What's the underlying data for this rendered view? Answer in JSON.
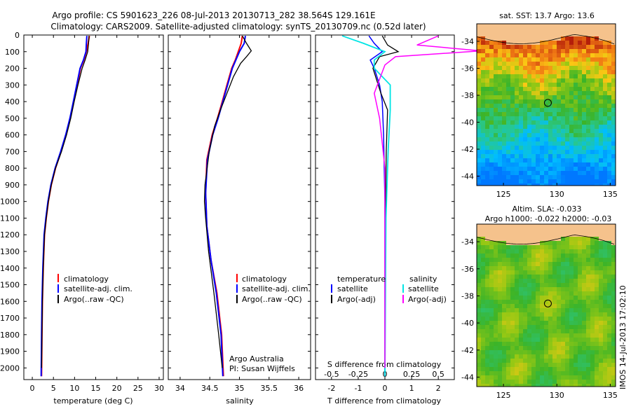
{
  "header": {
    "line1": "Argo profile: CS 5901623_226 08-Jul-2013 20130713_282 38.564S 129.161E",
    "line2": "Climatology: CARS2009. Satellite-adjusted climatology: synTS_20130709.nc (0.52d later)"
  },
  "footer": {
    "timestamp": "IMOS 14-Jul-2013 17:02:10"
  },
  "colors": {
    "climatology": "#ff0000",
    "satellite": "#0000ff",
    "argo": "#000000",
    "sal_satellite": "#00e5e5",
    "sal_argo": "#ff00ff",
    "land": "#f5c28c"
  },
  "legends": {
    "profiles": {
      "climatology": "climatology",
      "satellite": "satellite-adj. clim.",
      "argo": "Argo(..raw -QC)"
    },
    "diff": {
      "temp_head": "temperature",
      "temp_sat": "satellite",
      "temp_argo": "Argo(-adj)",
      "sal_head": "salinity",
      "sal_sat": "satellite",
      "sal_argo": "Argo(-adj)"
    }
  },
  "annotations": {
    "argo_australia": "Argo Australia",
    "pi": "PI: Susan Wijffels"
  },
  "chart_data": [
    {
      "type": "line",
      "xlabel": "temperature (deg C)",
      "xlim": [
        -2,
        31
      ],
      "xticks": [
        "0",
        "5",
        "10",
        "15",
        "20",
        "25",
        "30"
      ],
      "ylim": [
        2070,
        0
      ],
      "yticks": [
        "0",
        "100",
        "200",
        "300",
        "400",
        "500",
        "600",
        "700",
        "800",
        "900",
        "1000",
        "1100",
        "1200",
        "1300",
        "1400",
        "1500",
        "1600",
        "1700",
        "1800",
        "1900",
        "2000"
      ],
      "series": [
        {
          "name": "climatology",
          "x": [
            13.5,
            13.2,
            12.8,
            12.2,
            11.4,
            10.6,
            9.8,
            9.0,
            8.0,
            6.8,
            5.5,
            4.5,
            3.8,
            3.3,
            2.9,
            2.6,
            2.4,
            2.3,
            2.2
          ],
          "y": [
            5,
            50,
            100,
            150,
            200,
            300,
            400,
            500,
            600,
            700,
            800,
            900,
            1000,
            1100,
            1200,
            1400,
            1600,
            1800,
            2050
          ]
        },
        {
          "name": "satellite-adj. clim.",
          "x": [
            12.9,
            12.8,
            12.7,
            12.1,
            11.3,
            10.5,
            9.7,
            8.9,
            7.9,
            6.7,
            5.4,
            4.4,
            3.7,
            3.2,
            2.8,
            2.5,
            2.3,
            2.2,
            2.1
          ],
          "y": [
            5,
            50,
            100,
            150,
            200,
            300,
            400,
            500,
            600,
            700,
            800,
            900,
            1000,
            1100,
            1200,
            1400,
            1600,
            1800,
            2050
          ]
        },
        {
          "name": "Argo(..raw -QC)",
          "x": [
            13.4,
            13.3,
            13.1,
            12.5,
            11.8,
            10.8,
            9.9,
            9.1,
            8.1,
            6.9,
            5.5,
            4.5,
            3.8,
            3.3,
            2.9,
            2.6,
            2.4,
            2.3,
            2.2
          ],
          "y": [
            5,
            50,
            100,
            150,
            200,
            300,
            400,
            500,
            600,
            700,
            800,
            900,
            1000,
            1100,
            1200,
            1400,
            1600,
            1800,
            2000
          ]
        }
      ]
    },
    {
      "type": "line",
      "xlabel": "salinity",
      "xlim": [
        33.8,
        36.2
      ],
      "xticks": [
        "34",
        "34.5",
        "35",
        "35.5",
        "36"
      ],
      "ylim": [
        2070,
        0
      ],
      "series": [
        {
          "name": "climatology",
          "x": [
            35.05,
            35.03,
            34.98,
            34.93,
            34.87,
            34.79,
            34.71,
            34.63,
            34.54,
            34.45,
            34.43,
            34.45,
            34.52,
            34.62,
            34.7,
            34.73
          ],
          "y": [
            5,
            50,
            100,
            150,
            200,
            300,
            400,
            500,
            600,
            750,
            950,
            1150,
            1350,
            1550,
            1800,
            2050
          ]
        },
        {
          "name": "satellite-adj. clim.",
          "x": [
            35.1,
            35.08,
            35.0,
            34.94,
            34.88,
            34.8,
            34.72,
            34.64,
            34.55,
            34.46,
            34.43,
            34.45,
            34.52,
            34.61,
            34.69,
            34.72
          ],
          "y": [
            5,
            50,
            100,
            150,
            200,
            300,
            400,
            500,
            600,
            750,
            950,
            1150,
            1350,
            1550,
            1800,
            2050
          ]
        },
        {
          "name": "Argo(..raw -QC)",
          "x": [
            35.05,
            35.12,
            35.2,
            35.12,
            35.02,
            34.9,
            34.79,
            34.68,
            34.58,
            34.49,
            34.42,
            34.41,
            34.43,
            34.48,
            34.57,
            34.65,
            34.71
          ],
          "y": [
            5,
            50,
            95,
            130,
            170,
            250,
            350,
            450,
            550,
            700,
            900,
            1000,
            1100,
            1300,
            1550,
            1800,
            2000
          ]
        }
      ]
    },
    {
      "type": "line",
      "xlabel": "T difference from climatology",
      "x2label": "S difference from climatology",
      "xlim": [
        -2.6,
        2.6
      ],
      "xticks": [
        "-2",
        "-1",
        "0",
        "1",
        "2"
      ],
      "x2lim": [
        -0.65,
        0.65
      ],
      "x2ticks": [
        "-0.5",
        "-0.25",
        "0",
        "0.25",
        "0.5"
      ],
      "ylim": [
        2070,
        0
      ],
      "series": [
        {
          "name": "satellite",
          "x": [
            -0.6,
            -0.4,
            -0.1,
            -0.55,
            -0.4,
            -0.2,
            -0.1,
            -0.05,
            0,
            0
          ],
          "y": [
            5,
            50,
            100,
            150,
            200,
            300,
            400,
            600,
            1000,
            2050
          ]
        },
        {
          "name": "Argo(-adj)",
          "x": [
            -0.1,
            0.1,
            0.5,
            -0.2,
            -0.45,
            -0.15,
            0.1,
            0.05,
            0.02,
            0.0
          ],
          "y": [
            5,
            60,
            100,
            130,
            200,
            350,
            450,
            700,
            1100,
            2000
          ]
        },
        {
          "name": "salinity satellite",
          "x": [
            -0.4,
            -0.2,
            0.0,
            -0.1,
            -0.1,
            0.05,
            0.05,
            0.03,
            0.01,
            0.0
          ],
          "y": [
            5,
            50,
            100,
            150,
            200,
            300,
            450,
            700,
            1100,
            2050
          ]
        },
        {
          "name": "salinity Argo(-adj)",
          "x": [
            0.5,
            0.3,
            0.9,
            0.1,
            0.0,
            -0.1,
            -0.05,
            0.0,
            0.0,
            0.0
          ],
          "y": [
            5,
            60,
            95,
            130,
            180,
            350,
            500,
            800,
            1200,
            2000
          ]
        }
      ]
    },
    {
      "type": "heatmap",
      "title": "sat. SST: 13.7 Argo: 13.6",
      "xlim": [
        122.5,
        135.5
      ],
      "xticks": [
        "125",
        "130",
        "135"
      ],
      "ylim": [
        -44.7,
        -32.7
      ],
      "yticks": [
        "-34",
        "-36",
        "-38",
        "-40",
        "-42",
        "-44"
      ],
      "marker": {
        "lon": 129.161,
        "lat": -38.564
      }
    },
    {
      "type": "heatmap",
      "title": "Altim. SLA: -0.033",
      "subtitle": "Argo h1000: -0.022 h2000: -0.03",
      "xlim": [
        122.5,
        135.5
      ],
      "xticks": [
        "125",
        "130",
        "135"
      ],
      "ylim": [
        -44.7,
        -32.7
      ],
      "yticks": [
        "-34",
        "-36",
        "-38",
        "-40",
        "-42",
        "-44"
      ],
      "marker": {
        "lon": 129.161,
        "lat": -38.564
      }
    }
  ]
}
